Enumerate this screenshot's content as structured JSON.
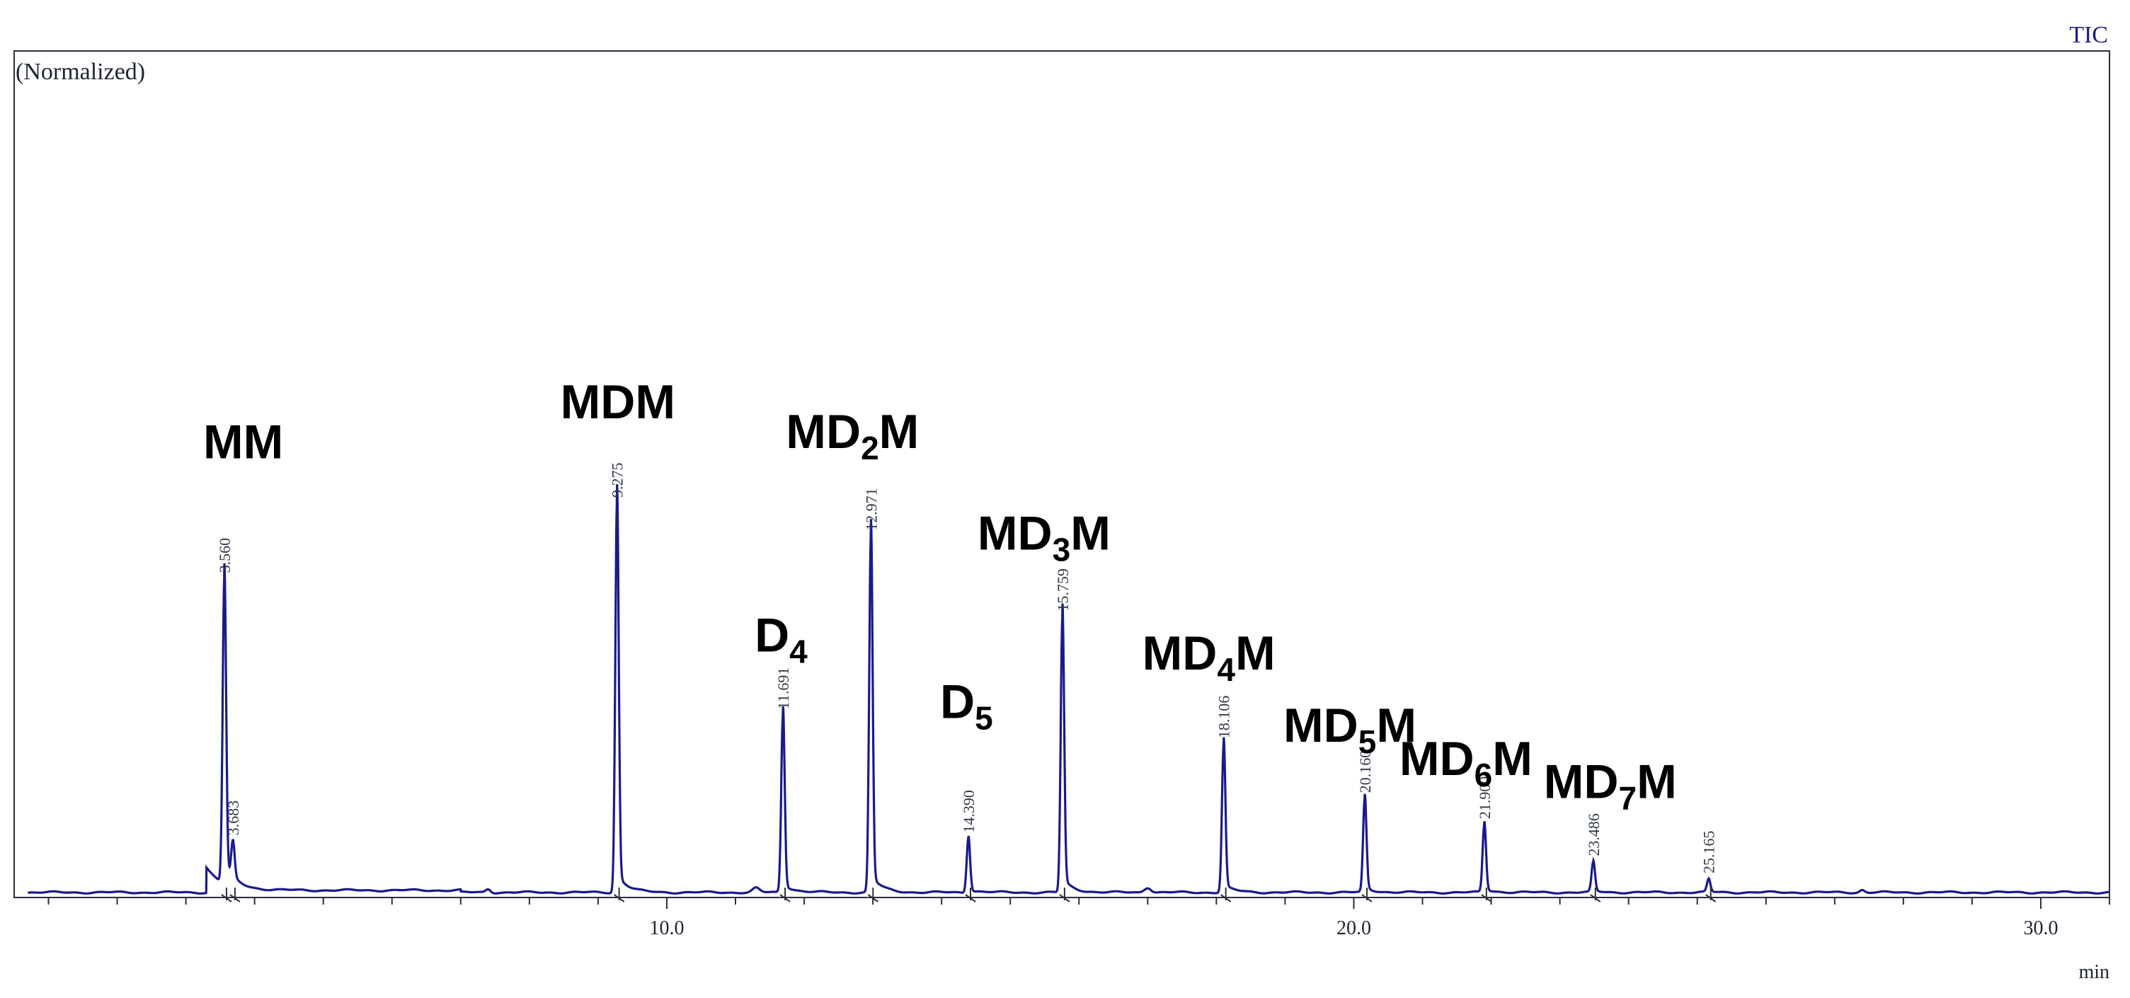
{
  "chart_data": {
    "type": "line",
    "trace_label": "TIC",
    "y_note": "(Normalized)",
    "xunit": "min",
    "xlim": [
      0.5,
      31.0
    ],
    "ylim": [
      0,
      100
    ],
    "x_ticks": [
      {
        "value": 10.0,
        "label": "10.0"
      },
      {
        "value": 20.0,
        "label": "20.0"
      },
      {
        "value": 30.0,
        "label": "30.0"
      }
    ],
    "line_color": "#1a1a8c",
    "peaks": [
      {
        "rt": 3.56,
        "height": 36.0,
        "rt_label": "3.560"
      },
      {
        "rt": 3.683,
        "height": 4.5,
        "rt_label": "3.683"
      },
      {
        "rt": 9.275,
        "height": 46.0,
        "rt_label": "9.275"
      },
      {
        "rt": 11.691,
        "height": 21.0,
        "rt_label": "11.691"
      },
      {
        "rt": 12.971,
        "height": 42.0,
        "rt_label": "12.971"
      },
      {
        "rt": 14.39,
        "height": 6.5,
        "rt_label": "14.390"
      },
      {
        "rt": 15.759,
        "height": 32.5,
        "rt_label": "15.759"
      },
      {
        "rt": 18.106,
        "height": 17.5,
        "rt_label": "18.106"
      },
      {
        "rt": 20.16,
        "height": 11.0,
        "rt_label": "20.160"
      },
      {
        "rt": 21.9,
        "height": 8.0,
        "rt_label": "21.900"
      },
      {
        "rt": 23.486,
        "height": 3.5,
        "rt_label": "23.486"
      },
      {
        "rt": 25.165,
        "height": 1.5,
        "rt_label": "25.165"
      }
    ],
    "compound_labels": [
      {
        "main": "MM",
        "sub": "",
        "end": "",
        "rt": 3.56
      },
      {
        "main": "MDM",
        "sub": "",
        "end": "",
        "rt": 9.275
      },
      {
        "main": "D",
        "sub": "4",
        "end": "",
        "rt": 11.691
      },
      {
        "main": "MD",
        "sub": "2",
        "end": "M",
        "rt": 12.971
      },
      {
        "main": "D",
        "sub": "5",
        "end": "",
        "rt": 14.39
      },
      {
        "main": "MD",
        "sub": "3",
        "end": "M",
        "rt": 15.759
      },
      {
        "main": "MD",
        "sub": "4",
        "end": "M",
        "rt": 18.106
      },
      {
        "main": "MD",
        "sub": "5",
        "end": "M",
        "rt": 20.16
      },
      {
        "main": "MD",
        "sub": "6",
        "end": "M",
        "rt": 21.9
      },
      {
        "main": "MD",
        "sub": "7",
        "end": "M",
        "rt": 23.486
      }
    ]
  }
}
